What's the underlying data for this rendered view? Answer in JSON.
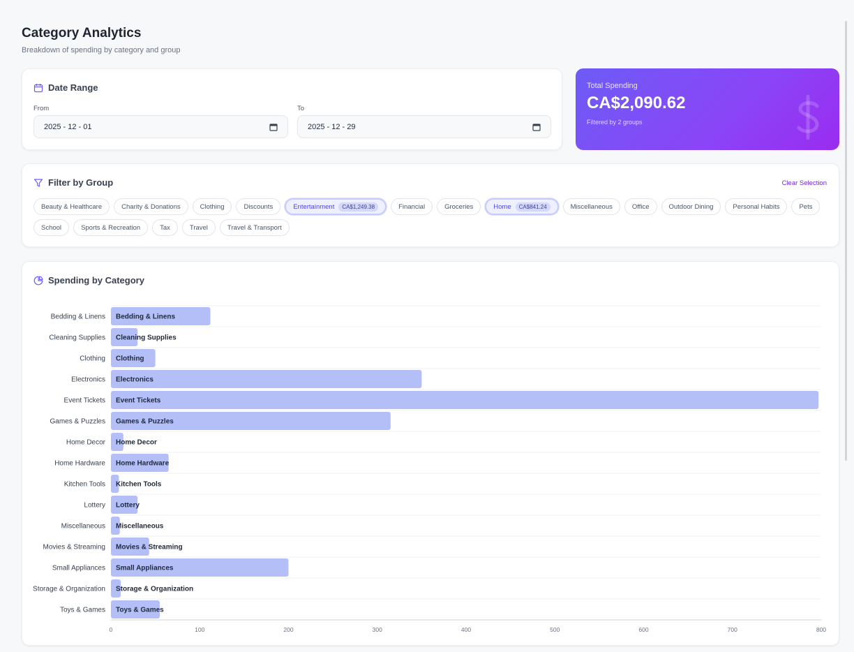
{
  "header": {
    "title": "Category Analytics",
    "subtitle": "Breakdown of spending by category and group"
  },
  "date_range": {
    "title": "Date Range",
    "from_label": "From",
    "from_value": "2025 - 12 - 01",
    "to_label": "To",
    "to_value": "2025 - 12 - 29"
  },
  "total": {
    "label": "Total Spending",
    "amount": "CA$2,090.62",
    "note": "Filtered by 2 groups"
  },
  "filter": {
    "title": "Filter by Group",
    "clear_label": "Clear Selection",
    "groups": [
      {
        "label": "Beauty & Healthcare",
        "active": false,
        "amount": ""
      },
      {
        "label": "Charity & Donations",
        "active": false,
        "amount": ""
      },
      {
        "label": "Clothing",
        "active": false,
        "amount": ""
      },
      {
        "label": "Discounts",
        "active": false,
        "amount": ""
      },
      {
        "label": "Entertainment",
        "active": true,
        "amount": "CA$1,249.38"
      },
      {
        "label": "Financial",
        "active": false,
        "amount": ""
      },
      {
        "label": "Groceries",
        "active": false,
        "amount": ""
      },
      {
        "label": "Home",
        "active": true,
        "amount": "CA$841.24"
      },
      {
        "label": "Miscellaneous",
        "active": false,
        "amount": ""
      },
      {
        "label": "Office",
        "active": false,
        "amount": ""
      },
      {
        "label": "Outdoor Dining",
        "active": false,
        "amount": ""
      },
      {
        "label": "Personal Habits",
        "active": false,
        "amount": ""
      },
      {
        "label": "Pets",
        "active": false,
        "amount": ""
      },
      {
        "label": "School",
        "active": false,
        "amount": ""
      },
      {
        "label": "Sports & Recreation",
        "active": false,
        "amount": ""
      },
      {
        "label": "Tax",
        "active": false,
        "amount": ""
      },
      {
        "label": "Travel",
        "active": false,
        "amount": ""
      },
      {
        "label": "Travel & Transport",
        "active": false,
        "amount": ""
      }
    ]
  },
  "chart_section": {
    "title": "Spending by Category"
  },
  "chart_data": {
    "type": "bar",
    "orientation": "horizontal",
    "categories": [
      "Bedding & Linens",
      "Cleaning Supplies",
      "Clothing",
      "Electronics",
      "Event Tickets",
      "Games & Puzzles",
      "Home Decor",
      "Home Hardware",
      "Kitchen Tools",
      "Lottery",
      "Miscellaneous",
      "Movies & Streaming",
      "Small Appliances",
      "Storage & Organization",
      "Toys & Games"
    ],
    "values": [
      112,
      30,
      50,
      350,
      797,
      315,
      14,
      65,
      9,
      30,
      10,
      43,
      200,
      11,
      55
    ],
    "xlim": [
      0,
      800
    ],
    "xticks": [
      0,
      100,
      200,
      300,
      400,
      500,
      600,
      700,
      800
    ],
    "grid": true,
    "bar_color": "#b4bff8"
  },
  "colors": {
    "accent": "#6d5cf6",
    "accent_end": "#9a2cf0",
    "chip_active_bg": "#eef0ff"
  },
  "icons": {
    "date": "calendar-icon",
    "filter": "filter-icon",
    "chart": "pie-chart-icon",
    "total": "dollar-icon"
  }
}
